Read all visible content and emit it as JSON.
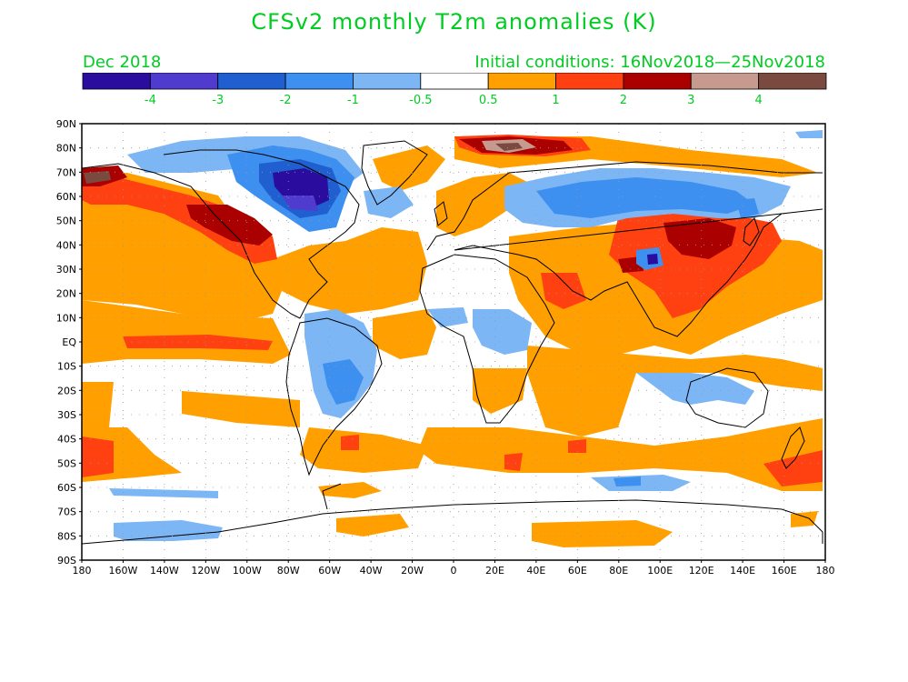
{
  "header": {
    "title": "CFSv2 monthly T2m anomalies (K)",
    "month": "Dec 2018",
    "initial_conditions": "Initial conditions: 16Nov2018—25Nov2018"
  },
  "colorbar": {
    "colors": [
      "#2a0d9e",
      "#4f3ccf",
      "#1f5fd0",
      "#3d8ff0",
      "#7db6f5",
      "#ffffff",
      "#ffa000",
      "#ff4010",
      "#aa0000",
      "#c79a8f",
      "#7a4a40"
    ],
    "labels": [
      "-4",
      "-3",
      "-2",
      "-1",
      "-0.5",
      "0.5",
      "1",
      "2",
      "3",
      "4"
    ],
    "label_color": "#00cc22"
  },
  "map": {
    "lat_labels": [
      "90N",
      "80N",
      "70N",
      "60N",
      "50N",
      "40N",
      "30N",
      "20N",
      "10N",
      "EQ",
      "10S",
      "20S",
      "30S",
      "40S",
      "50S",
      "60S",
      "70S",
      "80S",
      "90S"
    ],
    "lon_labels": [
      "180",
      "160W",
      "140W",
      "120W",
      "100W",
      "80W",
      "60W",
      "40W",
      "20W",
      "0",
      "20E",
      "40E",
      "60E",
      "80E",
      "100E",
      "120E",
      "140E",
      "160E",
      "180"
    ],
    "regions": [
      {
        "name": "north-america-west-warm",
        "class": "2"
      },
      {
        "name": "canada-east-cold",
        "class": "-3"
      },
      {
        "name": "siberia-cold",
        "class": "-1"
      },
      {
        "name": "mongolia-warm",
        "class": "3"
      },
      {
        "name": "barents-warm",
        "class": "4"
      },
      {
        "name": "pacific-warm",
        "class": "1"
      },
      {
        "name": "atlantic-warm",
        "class": "1"
      },
      {
        "name": "indian-ocean-warm",
        "class": "1"
      },
      {
        "name": "south-america-cool",
        "class": "-1"
      },
      {
        "name": "australia-cool",
        "class": "-1"
      }
    ]
  }
}
